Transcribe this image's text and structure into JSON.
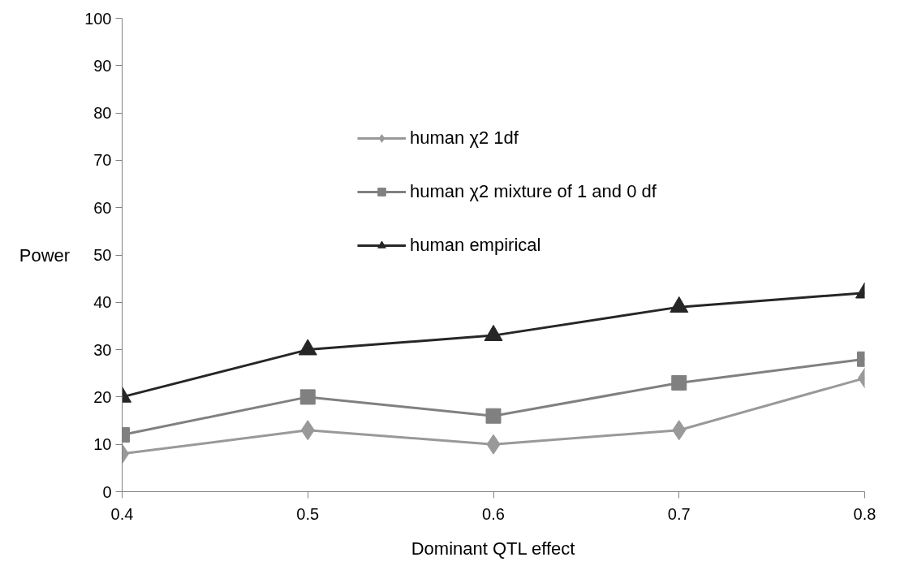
{
  "chart_data": {
    "type": "line",
    "xlabel": "Dominant QTL effect",
    "ylabel": "Power",
    "x": [
      0.4,
      0.5,
      0.6,
      0.7,
      0.8
    ],
    "series": [
      {
        "name": "human χ2 1df",
        "color": "#999999",
        "marker": "diamond",
        "values": [
          8,
          13,
          10,
          13,
          24
        ]
      },
      {
        "name": "human χ2 mixture of 1 and 0 df",
        "color": "#808080",
        "marker": "square",
        "values": [
          12,
          20,
          16,
          23,
          28
        ]
      },
      {
        "name": "human empirical",
        "color": "#262626",
        "marker": "triangle",
        "values": [
          20,
          30,
          33,
          39,
          42
        ]
      }
    ],
    "xlim": [
      0.4,
      0.8
    ],
    "xticks": [
      0.4,
      0.5,
      0.6,
      0.7,
      0.8
    ],
    "ylim": [
      0,
      100
    ],
    "yticks": [
      0,
      10,
      20,
      30,
      40,
      50,
      60,
      70,
      80,
      90,
      100
    ],
    "grid": false,
    "legend": "top",
    "line_style": "solid"
  }
}
